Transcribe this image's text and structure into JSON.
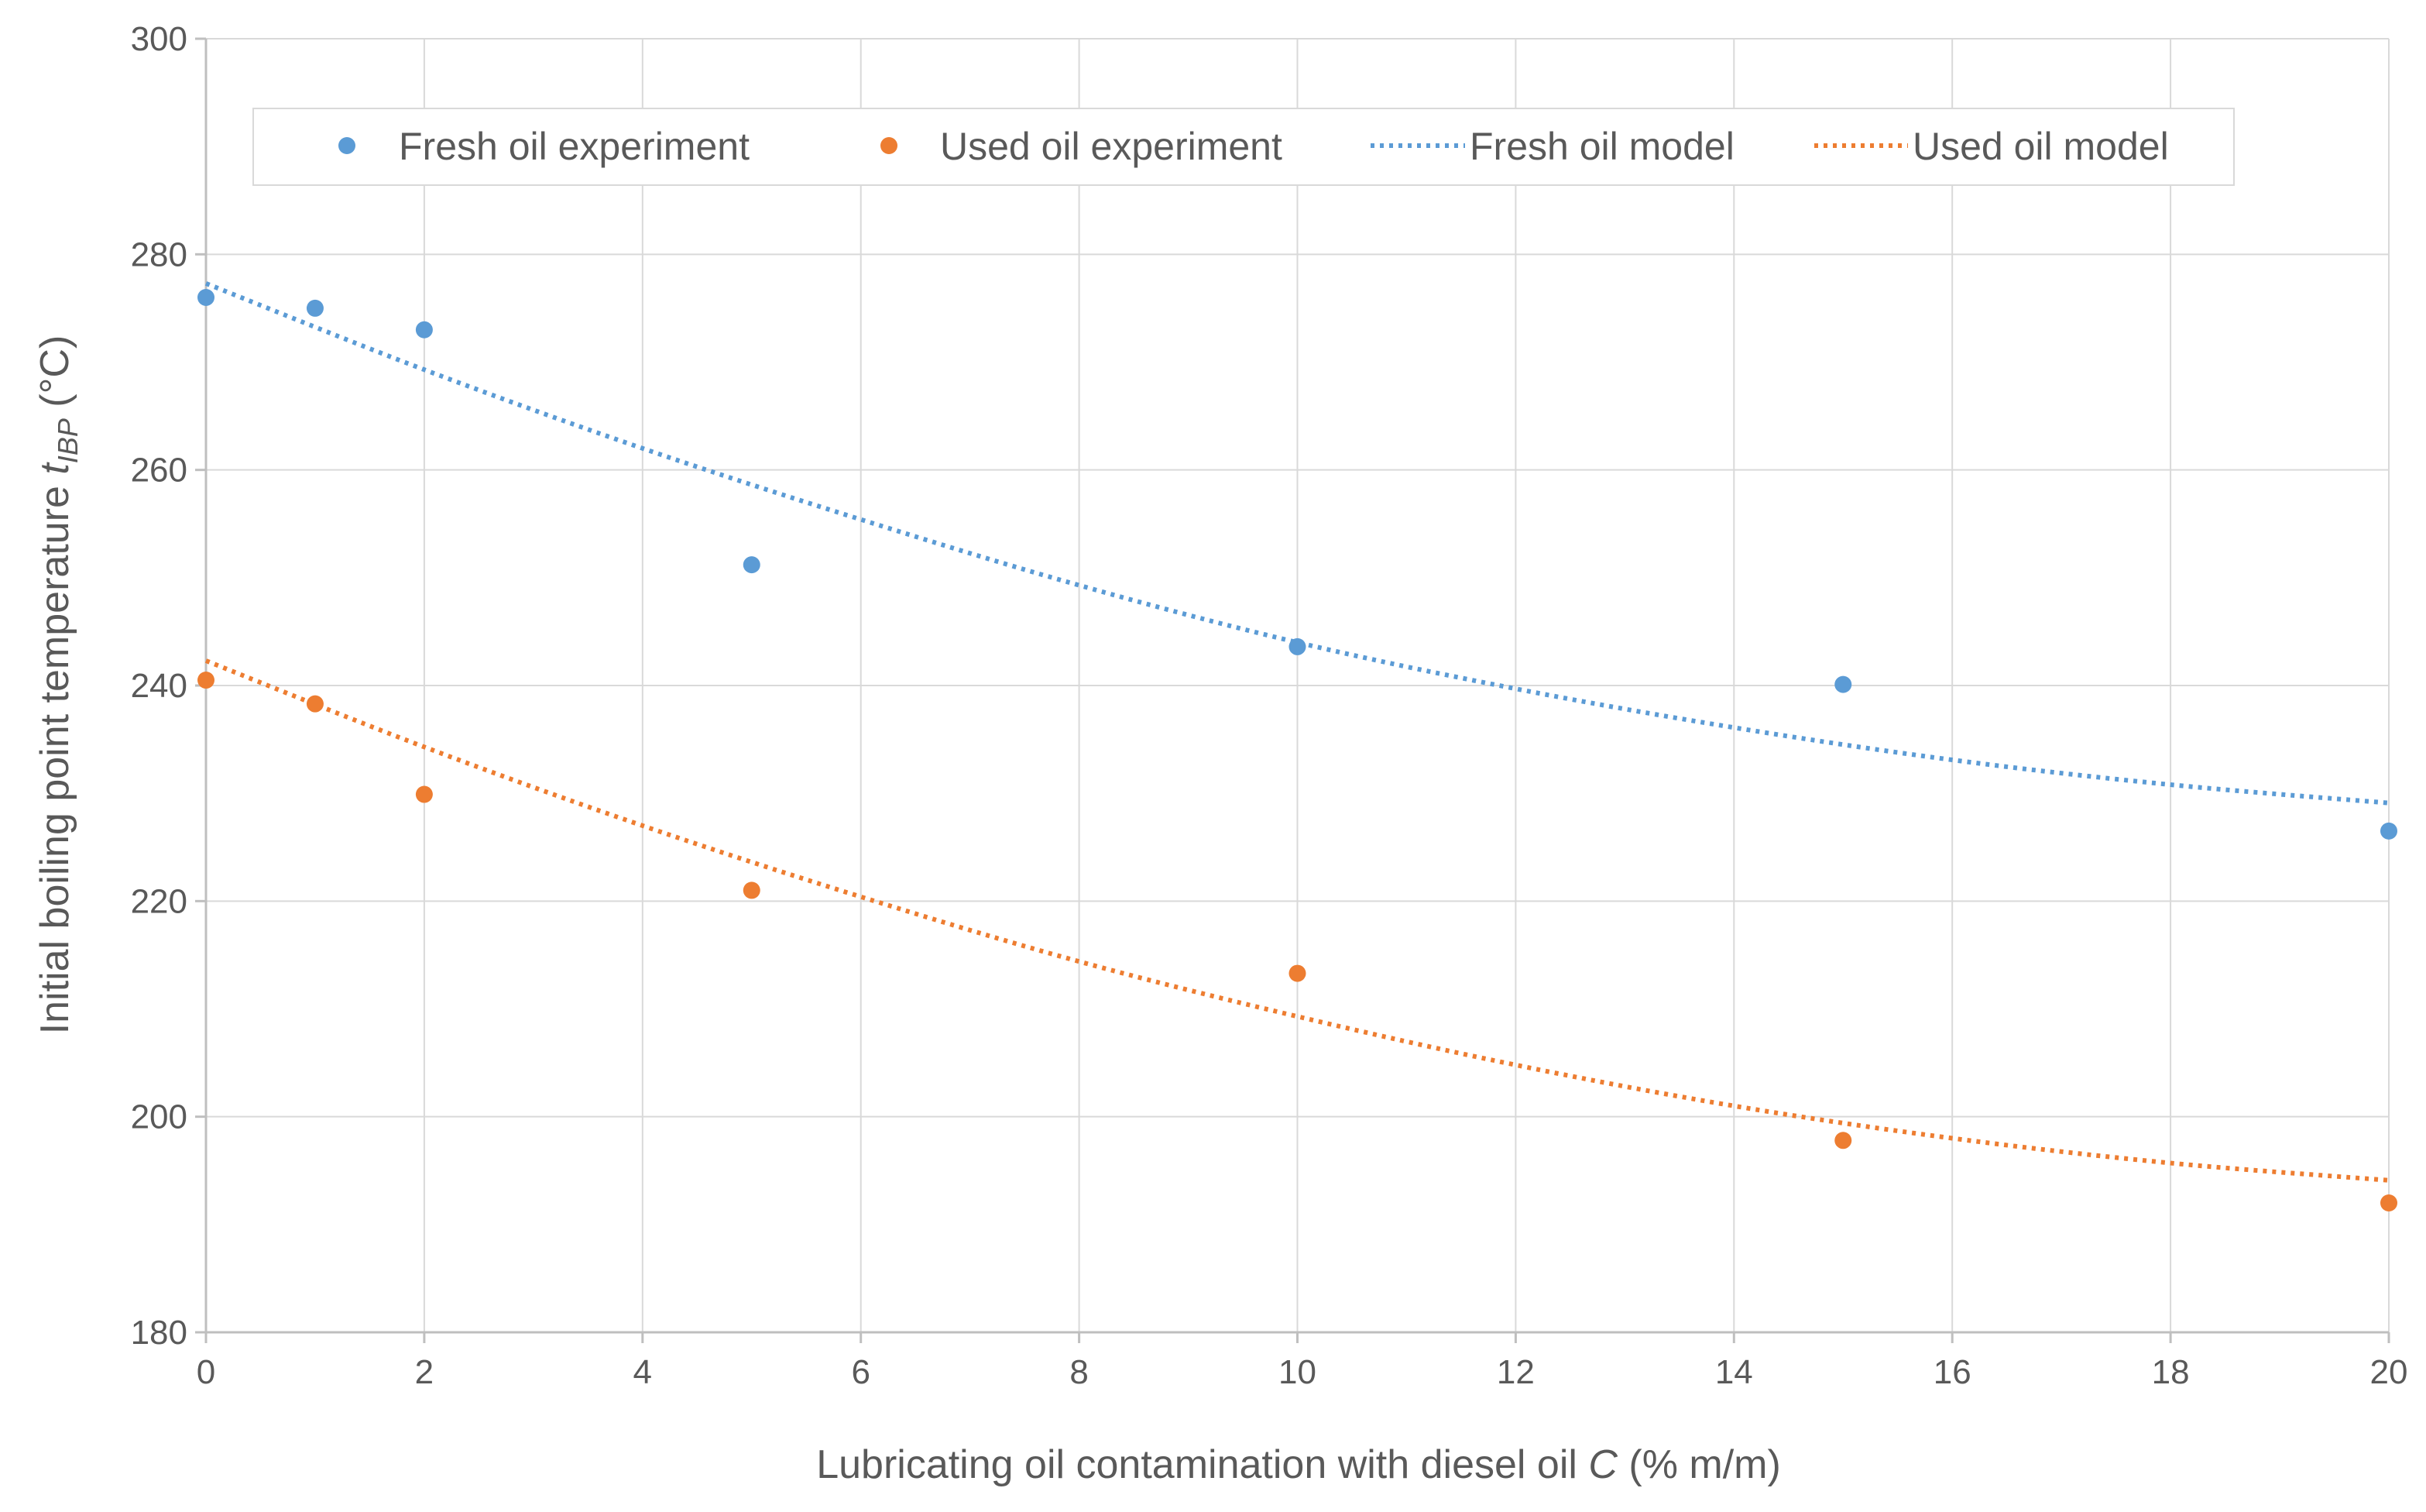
{
  "chart_data": {
    "type": "scatter",
    "title": "",
    "xlabel_main": "Lubricating oil contamination with diesel oil ",
    "xlabel_var": "C",
    "xlabel_unit": " (% m/m)",
    "ylabel_main": "Initial boiling point temperature ",
    "ylabel_var": "t",
    "ylabel_sub": "IBP",
    "ylabel_unit": " (°C)",
    "xlim": [
      0,
      20
    ],
    "ylim": [
      180,
      300
    ],
    "xticks": [
      0,
      2,
      4,
      6,
      8,
      10,
      12,
      14,
      16,
      18,
      20
    ],
    "yticks": [
      180,
      200,
      220,
      240,
      260,
      280,
      300
    ],
    "grid": true,
    "legend_position": "top",
    "series": [
      {
        "name": "Fresh oil experiment",
        "kind": "points",
        "color": "#5b9bd5",
        "x": [
          0,
          1,
          2,
          5,
          10,
          15,
          20
        ],
        "y": [
          276,
          275,
          273,
          251.2,
          243.6,
          240.1,
          226.5
        ]
      },
      {
        "name": "Used oil experiment",
        "kind": "points",
        "color": "#ed7d31",
        "x": [
          0,
          1,
          2,
          5,
          10,
          15,
          20
        ],
        "y": [
          240.5,
          238.3,
          229.9,
          221,
          213.3,
          197.8,
          192
        ]
      },
      {
        "name": "Fresh oil model",
        "kind": "dotted-line",
        "color": "#5b9bd5",
        "x": [
          0,
          2,
          4,
          6,
          8,
          10,
          12,
          14,
          16,
          18,
          20
        ],
        "y": [
          277.3,
          269.3,
          262,
          255.4,
          249.3,
          244,
          239.7,
          236.1,
          233.1,
          230.8,
          229.1
        ]
      },
      {
        "name": "Used oil model",
        "kind": "dotted-line",
        "color": "#ed7d31",
        "x": [
          0,
          2,
          4,
          6,
          8,
          10,
          12,
          14,
          16,
          18,
          20
        ],
        "y": [
          242.3,
          234.3,
          227,
          220.4,
          214.4,
          209.3,
          204.8,
          201,
          198,
          195.7,
          194.1
        ]
      }
    ]
  }
}
